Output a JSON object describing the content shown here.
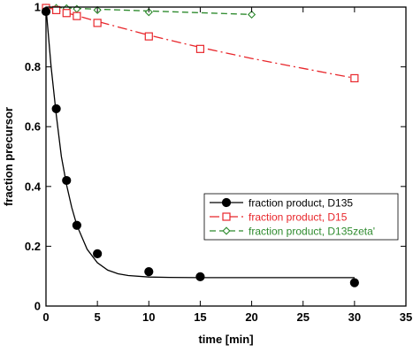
{
  "chart_data": {
    "type": "scatter",
    "xlabel": "time [min]",
    "ylabel": "fraction precursor",
    "xlim": [
      0,
      35
    ],
    "ylim": [
      0,
      1
    ],
    "xticks": [
      "0",
      "5",
      "10",
      "15",
      "20",
      "25",
      "30",
      "35"
    ],
    "yticks": [
      "0",
      "0.2",
      "0.4",
      "0.6",
      "0.8",
      "1"
    ],
    "grid": false,
    "legend_position": "bottom-right",
    "series": [
      {
        "name": "fraction product, D135",
        "color": "#000000",
        "marker": "filled-circle",
        "line_style": "solid",
        "x": [
          0,
          1,
          2,
          3,
          5,
          10,
          15,
          30
        ],
        "y": [
          0.985,
          0.66,
          0.42,
          0.27,
          0.175,
          0.115,
          0.098,
          0.078
        ],
        "fit": {
          "x": [
            0,
            0.5,
            1,
            1.5,
            2,
            2.5,
            3,
            4,
            5,
            6,
            7,
            8,
            10,
            12,
            15,
            20,
            25,
            30
          ],
          "y": [
            1.0,
            0.8,
            0.64,
            0.5,
            0.405,
            0.33,
            0.27,
            0.19,
            0.145,
            0.12,
            0.108,
            0.102,
            0.097,
            0.096,
            0.095,
            0.095,
            0.095,
            0.095
          ]
        }
      },
      {
        "name": "fraction product, D15",
        "color": "#e8262b",
        "marker": "open-square",
        "line_style": "dash-dot",
        "x": [
          0,
          1,
          2,
          3,
          5,
          10,
          15,
          30
        ],
        "y": [
          0.997,
          0.99,
          0.98,
          0.97,
          0.947,
          0.902,
          0.86,
          0.762
        ],
        "fit": {
          "x": [
            0,
            5,
            10,
            15,
            20,
            25,
            30
          ],
          "y": [
            1.0,
            0.952,
            0.906,
            0.865,
            0.828,
            0.795,
            0.762
          ]
        }
      },
      {
        "name": "fraction product, D135zeta'",
        "color": "#2e8b2e",
        "marker": "open-diamond",
        "line_style": "dashed",
        "x": [
          0,
          1,
          2,
          3,
          5,
          10,
          20
        ],
        "y": [
          0.998,
          0.997,
          0.996,
          0.994,
          0.99,
          0.983,
          0.975
        ],
        "fit": {
          "x": [
            0,
            5,
            10,
            15,
            20
          ],
          "y": [
            1.0,
            0.993,
            0.987,
            0.981,
            0.975
          ]
        }
      }
    ]
  }
}
